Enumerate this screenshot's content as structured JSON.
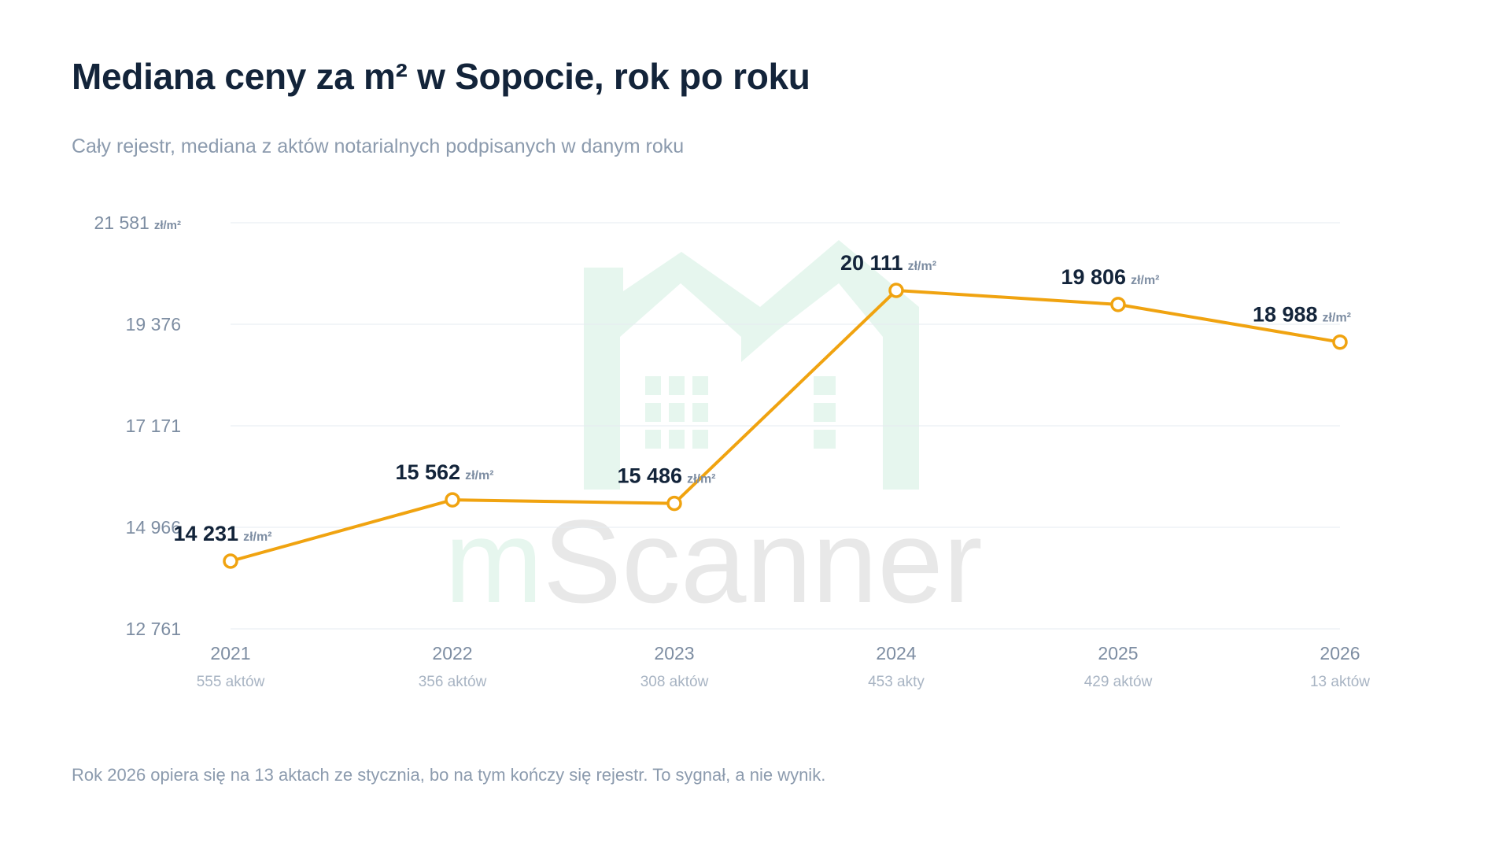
{
  "title": "Mediana ceny za m² w Sopocie, rok po roku",
  "subtitle": "Cały rejestr, mediana z aktów notarialnych podpisanych w danym roku",
  "footnote": "Rok 2026 opiera się na 13 aktach ze stycznia, bo na tym kończy się rejestr. To sygnał, a nie wynik.",
  "watermark": {
    "text_m": "m",
    "text_rest": "Scanner",
    "icon": "house-logo-icon",
    "color_green": "#e6f6ee",
    "color_gray": "#e8e8e8"
  },
  "colors": {
    "line": "#f0a310",
    "grid": "#e6ebf0"
  },
  "chart_data": {
    "type": "line",
    "title": "Mediana ceny za m² w Sopocie, rok po roku",
    "subtitle": "Cały rejestr, mediana z aktów notarialnych podpisanych w danym roku",
    "x": [
      "2021",
      "2022",
      "2023",
      "2024",
      "2025",
      "2026"
    ],
    "x_sublabels": [
      "555 aktów",
      "356 aktów",
      "308 aktów",
      "453 akty",
      "429 aktów",
      "13 aktów"
    ],
    "series": [
      {
        "values": [
          14231,
          15562,
          15486,
          20111,
          19806,
          18988
        ],
        "value_labels": [
          "14 231",
          "15 562",
          "15 486",
          "20 111",
          "19 806",
          "18 988"
        ]
      }
    ],
    "unit": "zł/m²",
    "ylim": [
      12761,
      21581
    ],
    "yticks": [
      12761,
      14966,
      17171,
      19376,
      21581
    ],
    "ytick_labels": [
      "12 761",
      "14 966",
      "17 171",
      "19 376",
      "21 581"
    ],
    "top_tick_unit": "zł/m²",
    "grid": true,
    "legend": "none"
  }
}
